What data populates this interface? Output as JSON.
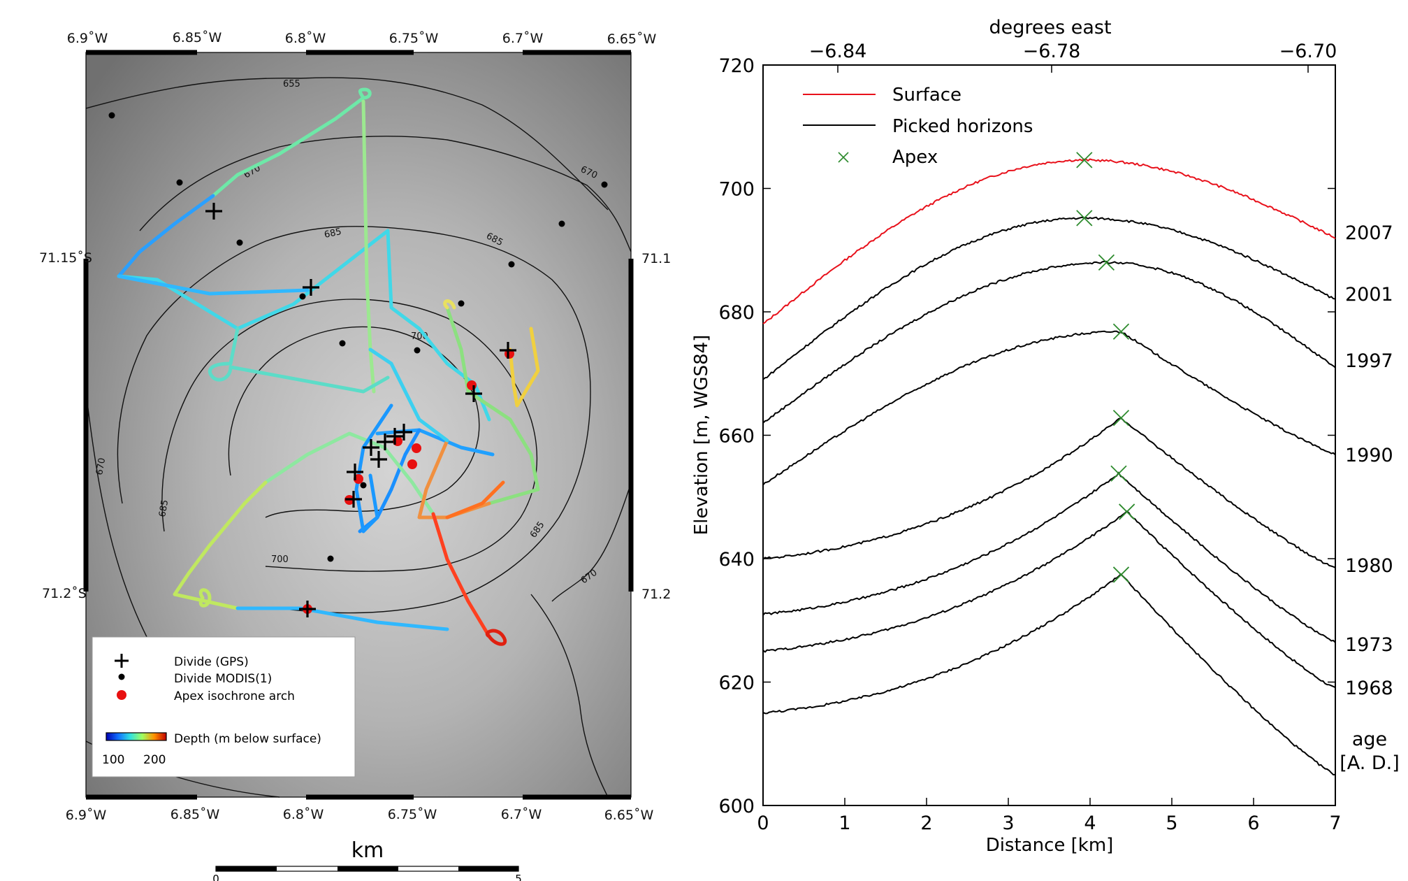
{
  "chart_data": [
    {
      "type": "map",
      "x_ticks_top": [
        "6.9˚W",
        "6.85˚W",
        "6.8˚W",
        "6.75˚W",
        "6.7˚W",
        "6.65˚W"
      ],
      "x_ticks_bottom": [
        "6.9˚W",
        "6.85˚W",
        "6.8˚W",
        "6.75˚W",
        "6.7˚W",
        "6.65˚W"
      ],
      "y_ticks_left": [
        "71.15˚S",
        "71.2˚S"
      ],
      "y_ticks_right": [
        "71.1",
        "71.2"
      ],
      "contour_labels": [
        "655",
        "670",
        "670",
        "685",
        "685",
        "700",
        "670",
        "685",
        "685",
        "700",
        "670"
      ],
      "legend": {
        "items": [
          "Divide (GPS)",
          "Divide MODIS(1)",
          "Apex isochrone arch"
        ],
        "colorbar_label": "Depth (m below surface)",
        "colorbar_ticks": [
          "100",
          "200"
        ],
        "colorbar_range": [
          100,
          200
        ]
      },
      "scalebar": {
        "unit": "km",
        "ticks": [
          "0",
          "5"
        ]
      }
    },
    {
      "type": "line",
      "xlabel": "Distance [km]",
      "ylabel": "Elevation [m, WGS84]",
      "top_xlabel": "degrees east",
      "top_ticks": [
        "−6.84",
        "−6.78",
        "−6.70"
      ],
      "x_ticks": [
        "0",
        "1",
        "2",
        "3",
        "4",
        "5",
        "6",
        "7"
      ],
      "y_ticks": [
        "600",
        "620",
        "640",
        "660",
        "680",
        "700",
        "720"
      ],
      "xlim": [
        0,
        7
      ],
      "ylim": [
        600,
        720
      ],
      "legend": [
        {
          "label": "Surface",
          "color": "#e8111b"
        },
        {
          "label": "Picked horizons",
          "color": "#000000"
        },
        {
          "label": "Apex",
          "color": "#2e8b2e"
        }
      ],
      "right_labels": [
        "2007",
        "2001",
        "1997",
        "1990",
        "1980",
        "1973",
        "1968"
      ],
      "right_axis_title": [
        "age",
        "[A. D.]"
      ],
      "series": [
        {
          "name": "Surface",
          "color": "#e8111b",
          "start": 678,
          "peak_x": 3.93,
          "peak": 704.6,
          "end": 692
        },
        {
          "name": "2007",
          "color": "#000000",
          "start": 669,
          "peak_x": 3.93,
          "peak": 695.2,
          "end": 682
        },
        {
          "name": "2001",
          "color": "#000000",
          "start": 662,
          "peak_x": 4.2,
          "peak": 688.0,
          "end": 671
        },
        {
          "name": "1997",
          "color": "#000000",
          "start": 652,
          "peak_x": 4.38,
          "peak": 676.8,
          "end": 657
        },
        {
          "name": "1990",
          "color": "#000000",
          "start": 640,
          "peak_x": 4.38,
          "peak": 662.8,
          "end": 638.5
        },
        {
          "name": "1980",
          "color": "#000000",
          "start": 631,
          "peak_x": 4.35,
          "peak": 653.8,
          "end": 626.5
        },
        {
          "name": "1973",
          "color": "#000000",
          "start": 625,
          "peak_x": 4.45,
          "peak": 647.6,
          "end": 619
        },
        {
          "name": "1968",
          "color": "#000000",
          "start": 615,
          "peak_x": 4.38,
          "peak": 637.4,
          "end": 605
        }
      ],
      "apex_points": [
        [
          3.93,
          704.6
        ],
        [
          3.93,
          695.2
        ],
        [
          4.2,
          688.0
        ],
        [
          4.38,
          676.8
        ],
        [
          4.38,
          662.8
        ],
        [
          4.35,
          653.8
        ],
        [
          4.45,
          647.6
        ],
        [
          4.38,
          637.4
        ]
      ]
    }
  ]
}
